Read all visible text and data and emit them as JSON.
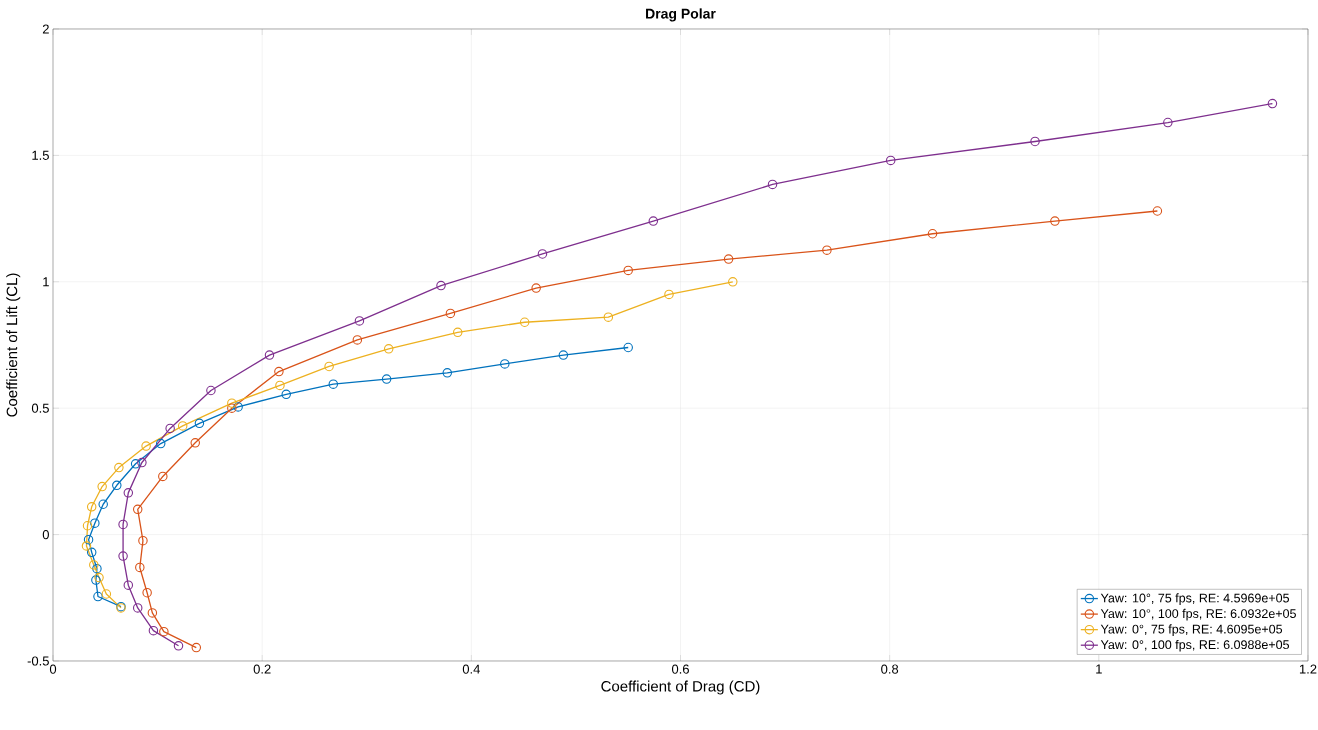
{
  "chart_data": {
    "type": "line",
    "title": "Drag Polar",
    "xlabel": "Coefficient of Drag (CD)",
    "ylabel": "Coefficient of Lift (CL)",
    "xlim": [
      0,
      1.2
    ],
    "ylim": [
      -0.5,
      2
    ],
    "xticks": [
      0,
      0.2,
      0.4,
      0.6,
      0.8,
      1,
      1.2
    ],
    "yticks": [
      -0.5,
      0,
      0.5,
      1,
      1.5,
      2
    ],
    "grid": true,
    "legend": "bottom right",
    "marker": "circle",
    "line_style": "solid",
    "series": [
      {
        "name": "Yaw: 10°, 75 fps, RE: 4.5969e+05",
        "color": "#0072bd",
        "x": [
          0.065,
          0.043,
          0.041,
          0.042,
          0.037,
          0.034,
          0.04,
          0.048,
          0.061,
          0.079,
          0.103,
          0.14,
          0.177,
          0.223,
          0.268,
          0.319,
          0.377,
          0.432,
          0.488,
          0.55
        ],
        "values": [
          -0.285,
          -0.245,
          -0.18,
          -0.135,
          -0.07,
          -0.02,
          0.045,
          0.12,
          0.195,
          0.28,
          0.36,
          0.44,
          0.505,
          0.555,
          0.595,
          0.615,
          0.64,
          0.675,
          0.71,
          0.74
        ]
      },
      {
        "name": "Yaw: 10°, 100 fps, RE: 6.0932e+05",
        "color": "#d95319",
        "x": [
          0.137,
          0.106,
          0.095,
          0.09,
          0.083,
          0.086,
          0.081,
          0.105,
          0.136,
          0.171,
          0.216,
          0.291,
          0.38,
          0.462,
          0.55,
          0.646,
          0.74,
          0.841,
          0.958,
          1.056
        ],
        "values": [
          -0.447,
          -0.384,
          -0.31,
          -0.23,
          -0.13,
          -0.024,
          0.1,
          0.23,
          0.363,
          0.5,
          0.645,
          0.77,
          0.875,
          0.975,
          1.045,
          1.09,
          1.125,
          1.19,
          1.24,
          1.28
        ]
      },
      {
        "name": "Yaw: 0°, 75 fps, RE: 4.6095e+05",
        "color": "#edb120",
        "x": [
          0.065,
          0.051,
          0.044,
          0.039,
          0.032,
          0.033,
          0.037,
          0.047,
          0.063,
          0.089,
          0.124,
          0.171,
          0.217,
          0.264,
          0.321,
          0.387,
          0.451,
          0.531,
          0.589,
          0.65
        ],
        "values": [
          -0.29,
          -0.235,
          -0.17,
          -0.12,
          -0.045,
          0.035,
          0.11,
          0.19,
          0.265,
          0.35,
          0.43,
          0.52,
          0.59,
          0.665,
          0.735,
          0.8,
          0.84,
          0.86,
          0.95,
          1.0
        ]
      },
      {
        "name": "Yaw: 0°, 100 fps, RE: 6.0988e+05",
        "color": "#7e2f8e",
        "x": [
          0.12,
          0.096,
          0.081,
          0.072,
          0.067,
          0.067,
          0.072,
          0.085,
          0.112,
          0.151,
          0.207,
          0.293,
          0.371,
          0.468,
          0.574,
          0.688,
          0.801,
          0.939,
          1.066,
          1.166
        ],
        "values": [
          -0.44,
          -0.38,
          -0.29,
          -0.2,
          -0.085,
          0.04,
          0.165,
          0.285,
          0.42,
          0.57,
          0.71,
          0.845,
          0.985,
          1.11,
          1.24,
          1.385,
          1.48,
          1.555,
          1.63,
          1.705
        ]
      }
    ]
  }
}
